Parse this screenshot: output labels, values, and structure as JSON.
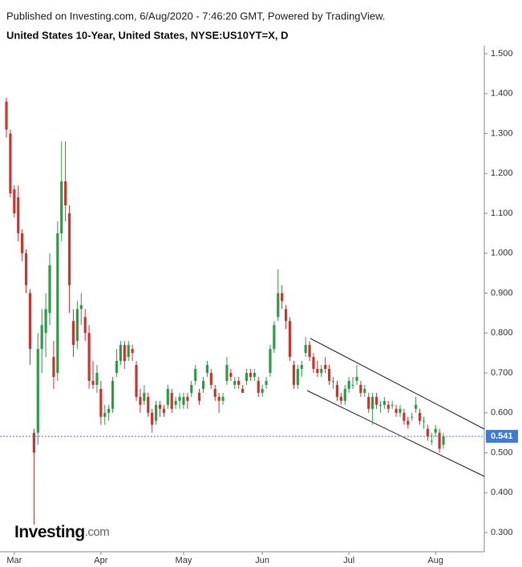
{
  "chart_data": {
    "type": "candlestick",
    "published": "Published on Investing.com, 6/Aug/2020 - 7:46:20 GMT, Powered by TradingView.",
    "title": "United States 10-Year, United States, NYSE:US10YT=X, D",
    "logo": {
      "name": "Investing",
      "suffix": ".com"
    },
    "up_color": "#2e9e46",
    "down_color": "#d0342c",
    "last_color": "#3d7bd9",
    "ylim": [
      0.25,
      1.53
    ],
    "yticks": [
      {
        "value": 0.3,
        "label": "0.300"
      },
      {
        "value": 0.4,
        "label": "0.400"
      },
      {
        "value": 0.5,
        "label": "0.500"
      },
      {
        "value": 0.6,
        "label": "0.600"
      },
      {
        "value": 0.7,
        "label": "0.700"
      },
      {
        "value": 0.8,
        "label": "0.800"
      },
      {
        "value": 0.9,
        "label": "0.900"
      },
      {
        "value": 1.0,
        "label": "1.000"
      },
      {
        "value": 1.1,
        "label": "1.100"
      },
      {
        "value": 1.2,
        "label": "1.200"
      },
      {
        "value": 1.3,
        "label": "1.300"
      },
      {
        "value": 1.4,
        "label": "1.400"
      },
      {
        "value": 1.5,
        "label": "1.500"
      }
    ],
    "last_price": 0.541,
    "categories": [
      null,
      null,
      "Mar",
      null,
      null,
      null,
      null,
      null,
      null,
      null,
      null,
      null,
      null,
      null,
      null,
      null,
      null,
      null,
      null,
      null,
      null,
      null,
      null,
      null,
      "Apr",
      null,
      null,
      null,
      null,
      null,
      null,
      null,
      null,
      null,
      null,
      null,
      null,
      null,
      null,
      null,
      null,
      null,
      null,
      null,
      null,
      "May",
      null,
      null,
      null,
      null,
      null,
      null,
      null,
      null,
      null,
      null,
      null,
      null,
      null,
      null,
      null,
      null,
      null,
      null,
      null,
      "Jun",
      null,
      null,
      null,
      null,
      null,
      null,
      null,
      null,
      null,
      null,
      null,
      null,
      null,
      null,
      null,
      null,
      null,
      null,
      null,
      null,
      null,
      "Jul",
      null,
      null,
      null,
      null,
      null,
      null,
      null,
      null,
      null,
      null,
      null,
      null,
      null,
      null,
      null,
      null,
      null,
      null,
      null,
      null,
      null,
      "Aug",
      null,
      null
    ],
    "ohlc": [
      [
        1.38,
        1.39,
        1.29,
        1.31
      ],
      [
        1.3,
        1.31,
        1.14,
        1.15
      ],
      [
        1.16,
        1.17,
        1.09,
        1.1
      ],
      [
        1.14,
        1.17,
        1.03,
        1.05
      ],
      [
        1.05,
        1.06,
        0.98,
        1.0
      ],
      [
        1.0,
        1.01,
        0.9,
        0.92
      ],
      [
        0.9,
        0.91,
        0.72,
        0.76
      ],
      [
        0.55,
        0.56,
        0.32,
        0.5
      ],
      [
        0.55,
        0.8,
        0.52,
        0.76
      ],
      [
        0.76,
        0.86,
        0.7,
        0.82
      ],
      [
        0.8,
        0.9,
        0.74,
        0.86
      ],
      [
        0.85,
        1.0,
        0.82,
        0.97
      ],
      [
        0.74,
        0.78,
        0.66,
        0.69
      ],
      [
        0.7,
        1.08,
        0.68,
        1.05
      ],
      [
        1.05,
        1.28,
        1.03,
        1.18
      ],
      [
        1.18,
        1.28,
        1.08,
        1.12
      ],
      [
        1.1,
        1.12,
        0.85,
        0.92
      ],
      [
        0.83,
        0.86,
        0.74,
        0.77
      ],
      [
        0.78,
        0.88,
        0.76,
        0.86
      ],
      [
        0.86,
        0.9,
        0.82,
        0.87
      ],
      [
        0.84,
        0.86,
        0.78,
        0.8
      ],
      [
        0.8,
        0.82,
        0.66,
        0.68
      ],
      [
        0.68,
        0.73,
        0.66,
        0.67
      ],
      [
        0.67,
        0.72,
        0.65,
        0.7
      ],
      [
        0.66,
        0.68,
        0.57,
        0.59
      ],
      [
        0.59,
        0.62,
        0.57,
        0.6
      ],
      [
        0.6,
        0.62,
        0.58,
        0.61
      ],
      [
        0.61,
        0.69,
        0.6,
        0.68
      ],
      [
        0.7,
        0.76,
        0.69,
        0.73
      ],
      [
        0.73,
        0.78,
        0.72,
        0.77
      ],
      [
        0.77,
        0.78,
        0.71,
        0.73
      ],
      [
        0.74,
        0.78,
        0.73,
        0.77
      ],
      [
        0.76,
        0.77,
        0.73,
        0.75
      ],
      [
        0.72,
        0.73,
        0.63,
        0.64
      ],
      [
        0.64,
        0.66,
        0.6,
        0.62
      ],
      [
        0.63,
        0.67,
        0.62,
        0.65
      ],
      [
        0.64,
        0.65,
        0.59,
        0.6
      ],
      [
        0.6,
        0.61,
        0.55,
        0.57
      ],
      [
        0.58,
        0.63,
        0.57,
        0.62
      ],
      [
        0.62,
        0.63,
        0.59,
        0.61
      ],
      [
        0.61,
        0.62,
        0.59,
        0.6
      ],
      [
        0.62,
        0.67,
        0.61,
        0.66
      ],
      [
        0.65,
        0.66,
        0.6,
        0.61
      ],
      [
        0.62,
        0.64,
        0.61,
        0.63
      ],
      [
        0.63,
        0.65,
        0.61,
        0.64
      ],
      [
        0.62,
        0.65,
        0.61,
        0.64
      ],
      [
        0.64,
        0.65,
        0.61,
        0.63
      ],
      [
        0.65,
        0.68,
        0.64,
        0.67
      ],
      [
        0.68,
        0.72,
        0.67,
        0.71
      ],
      [
        0.65,
        0.66,
        0.62,
        0.63
      ],
      [
        0.66,
        0.69,
        0.65,
        0.68
      ],
      [
        0.7,
        0.73,
        0.69,
        0.72
      ],
      [
        0.7,
        0.71,
        0.66,
        0.67
      ],
      [
        0.66,
        0.67,
        0.63,
        0.64
      ],
      [
        0.64,
        0.65,
        0.6,
        0.63
      ],
      [
        0.63,
        0.65,
        0.62,
        0.64
      ],
      [
        0.68,
        0.74,
        0.67,
        0.72
      ],
      [
        0.7,
        0.71,
        0.68,
        0.69
      ],
      [
        0.67,
        0.69,
        0.66,
        0.68
      ],
      [
        0.68,
        0.69,
        0.66,
        0.67
      ],
      [
        0.66,
        0.67,
        0.65,
        0.65
      ],
      [
        0.68,
        0.71,
        0.67,
        0.7
      ],
      [
        0.7,
        0.71,
        0.68,
        0.69
      ],
      [
        0.69,
        0.71,
        0.68,
        0.7
      ],
      [
        0.68,
        0.69,
        0.64,
        0.65
      ],
      [
        0.65,
        0.67,
        0.64,
        0.66
      ],
      [
        0.67,
        0.69,
        0.66,
        0.68
      ],
      [
        0.7,
        0.77,
        0.69,
        0.76
      ],
      [
        0.76,
        0.83,
        0.75,
        0.82
      ],
      [
        0.84,
        0.96,
        0.83,
        0.9
      ],
      [
        0.9,
        0.92,
        0.86,
        0.88
      ],
      [
        0.86,
        0.87,
        0.81,
        0.83
      ],
      [
        0.83,
        0.84,
        0.73,
        0.74
      ],
      [
        0.72,
        0.73,
        0.66,
        0.67
      ],
      [
        0.67,
        0.72,
        0.66,
        0.71
      ],
      [
        0.71,
        0.73,
        0.69,
        0.72
      ],
      [
        0.75,
        0.79,
        0.74,
        0.77
      ],
      [
        0.77,
        0.78,
        0.73,
        0.74
      ],
      [
        0.74,
        0.75,
        0.7,
        0.71
      ],
      [
        0.71,
        0.73,
        0.69,
        0.7
      ],
      [
        0.7,
        0.72,
        0.69,
        0.71
      ],
      [
        0.72,
        0.74,
        0.7,
        0.71
      ],
      [
        0.71,
        0.72,
        0.67,
        0.68
      ],
      [
        0.68,
        0.69,
        0.66,
        0.68
      ],
      [
        0.67,
        0.68,
        0.63,
        0.64
      ],
      [
        0.64,
        0.65,
        0.62,
        0.63
      ],
      [
        0.63,
        0.67,
        0.62,
        0.66
      ],
      [
        0.66,
        0.69,
        0.65,
        0.68
      ],
      [
        0.67,
        0.69,
        0.66,
        0.67
      ],
      [
        0.68,
        0.72,
        0.67,
        0.69
      ],
      [
        0.67,
        0.68,
        0.64,
        0.65
      ],
      [
        0.65,
        0.67,
        0.64,
        0.66
      ],
      [
        0.64,
        0.65,
        0.6,
        0.61
      ],
      [
        0.61,
        0.65,
        0.57,
        0.64
      ],
      [
        0.64,
        0.65,
        0.61,
        0.62
      ],
      [
        0.62,
        0.63,
        0.6,
        0.62
      ],
      [
        0.62,
        0.64,
        0.61,
        0.63
      ],
      [
        0.62,
        0.63,
        0.6,
        0.61
      ],
      [
        0.62,
        0.63,
        0.61,
        0.62
      ],
      [
        0.61,
        0.62,
        0.59,
        0.6
      ],
      [
        0.6,
        0.62,
        0.59,
        0.61
      ],
      [
        0.6,
        0.61,
        0.57,
        0.58
      ],
      [
        0.58,
        0.59,
        0.56,
        0.57
      ],
      [
        0.59,
        0.6,
        0.58,
        0.59
      ],
      [
        0.61,
        0.64,
        0.6,
        0.62
      ],
      [
        0.6,
        0.61,
        0.57,
        0.58
      ],
      [
        0.58,
        0.59,
        0.56,
        0.58
      ],
      [
        0.56,
        0.57,
        0.53,
        0.54
      ],
      [
        0.53,
        0.55,
        0.52,
        0.53
      ],
      [
        0.55,
        0.57,
        0.54,
        0.56
      ],
      [
        0.55,
        0.56,
        0.5,
        0.51
      ],
      [
        0.52,
        0.55,
        0.51,
        0.541
      ]
    ]
  }
}
